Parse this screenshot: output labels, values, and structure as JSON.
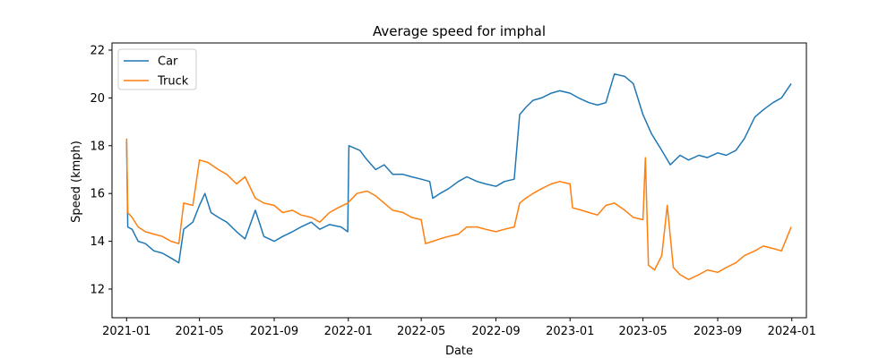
{
  "chart_data": {
    "type": "line",
    "title": "Average speed for imphal",
    "xlabel": "Date",
    "ylabel": "Speed (kmph)",
    "xlim": [
      "2020-12-08",
      "2024-01-25"
    ],
    "ylim": [
      10.8,
      22.3
    ],
    "xticks": [
      "2021-01",
      "2021-05",
      "2021-09",
      "2022-01",
      "2022-05",
      "2022-09",
      "2023-01",
      "2023-05",
      "2023-09",
      "2024-01"
    ],
    "yticks": [
      12,
      14,
      16,
      18,
      20,
      22
    ],
    "grid": false,
    "legend_position": "top-left",
    "series": [
      {
        "name": "Car",
        "color": "#1f77b4",
        "points": [
          [
            "2021-01-01",
            18.2
          ],
          [
            "2021-01-03",
            14.6
          ],
          [
            "2021-01-10",
            14.5
          ],
          [
            "2021-01-20",
            14.0
          ],
          [
            "2021-02-01",
            13.9
          ],
          [
            "2021-02-15",
            13.6
          ],
          [
            "2021-03-01",
            13.5
          ],
          [
            "2021-03-15",
            13.3
          ],
          [
            "2021-03-28",
            13.1
          ],
          [
            "2021-04-05",
            14.5
          ],
          [
            "2021-04-20",
            14.8
          ],
          [
            "2021-05-01",
            15.5
          ],
          [
            "2021-05-10",
            16.0
          ],
          [
            "2021-05-20",
            15.2
          ],
          [
            "2021-06-01",
            15.0
          ],
          [
            "2021-06-15",
            14.8
          ],
          [
            "2021-07-01",
            14.4
          ],
          [
            "2021-07-15",
            14.1
          ],
          [
            "2021-08-01",
            15.3
          ],
          [
            "2021-08-15",
            14.2
          ],
          [
            "2021-09-01",
            14.0
          ],
          [
            "2021-09-15",
            14.2
          ],
          [
            "2021-10-01",
            14.4
          ],
          [
            "2021-10-15",
            14.6
          ],
          [
            "2021-11-01",
            14.8
          ],
          [
            "2021-11-15",
            14.5
          ],
          [
            "2021-12-01",
            14.7
          ],
          [
            "2021-12-20",
            14.6
          ],
          [
            "2021-12-31",
            14.4
          ],
          [
            "2022-01-02",
            18.0
          ],
          [
            "2022-01-20",
            17.8
          ],
          [
            "2022-02-01",
            17.4
          ],
          [
            "2022-02-15",
            17.0
          ],
          [
            "2022-03-01",
            17.2
          ],
          [
            "2022-03-15",
            16.8
          ],
          [
            "2022-04-01",
            16.8
          ],
          [
            "2022-04-15",
            16.7
          ],
          [
            "2022-05-01",
            16.6
          ],
          [
            "2022-05-15",
            16.5
          ],
          [
            "2022-05-20",
            15.8
          ],
          [
            "2022-06-01",
            16.0
          ],
          [
            "2022-06-15",
            16.2
          ],
          [
            "2022-07-01",
            16.5
          ],
          [
            "2022-07-15",
            16.7
          ],
          [
            "2022-08-01",
            16.5
          ],
          [
            "2022-08-15",
            16.4
          ],
          [
            "2022-09-01",
            16.3
          ],
          [
            "2022-09-15",
            16.5
          ],
          [
            "2022-10-01",
            16.6
          ],
          [
            "2022-10-10",
            19.3
          ],
          [
            "2022-10-20",
            19.6
          ],
          [
            "2022-11-01",
            19.9
          ],
          [
            "2022-11-15",
            20.0
          ],
          [
            "2022-12-01",
            20.2
          ],
          [
            "2022-12-15",
            20.3
          ],
          [
            "2023-01-01",
            20.2
          ],
          [
            "2023-01-15",
            20.0
          ],
          [
            "2023-02-01",
            19.8
          ],
          [
            "2023-02-15",
            19.7
          ],
          [
            "2023-03-01",
            19.8
          ],
          [
            "2023-03-15",
            21.0
          ],
          [
            "2023-04-01",
            20.9
          ],
          [
            "2023-04-15",
            20.6
          ],
          [
            "2023-05-01",
            19.3
          ],
          [
            "2023-05-15",
            18.5
          ],
          [
            "2023-06-01",
            17.8
          ],
          [
            "2023-06-15",
            17.2
          ],
          [
            "2023-07-01",
            17.6
          ],
          [
            "2023-07-15",
            17.4
          ],
          [
            "2023-08-01",
            17.6
          ],
          [
            "2023-08-15",
            17.5
          ],
          [
            "2023-09-01",
            17.7
          ],
          [
            "2023-09-15",
            17.6
          ],
          [
            "2023-10-01",
            17.8
          ],
          [
            "2023-10-15",
            18.3
          ],
          [
            "2023-11-01",
            19.2
          ],
          [
            "2023-11-15",
            19.5
          ],
          [
            "2023-12-01",
            19.8
          ],
          [
            "2023-12-15",
            20.0
          ],
          [
            "2023-12-31",
            20.6
          ]
        ]
      },
      {
        "name": "Truck",
        "color": "#ff7f0e",
        "points": [
          [
            "2021-01-01",
            18.3
          ],
          [
            "2021-01-03",
            15.2
          ],
          [
            "2021-01-10",
            15.0
          ],
          [
            "2021-01-20",
            14.6
          ],
          [
            "2021-02-01",
            14.4
          ],
          [
            "2021-02-15",
            14.3
          ],
          [
            "2021-03-01",
            14.2
          ],
          [
            "2021-03-15",
            14.0
          ],
          [
            "2021-03-28",
            13.9
          ],
          [
            "2021-04-05",
            15.6
          ],
          [
            "2021-04-20",
            15.5
          ],
          [
            "2021-05-01",
            17.4
          ],
          [
            "2021-05-15",
            17.3
          ],
          [
            "2021-06-01",
            17.0
          ],
          [
            "2021-06-15",
            16.8
          ],
          [
            "2021-07-01",
            16.4
          ],
          [
            "2021-07-15",
            16.7
          ],
          [
            "2021-08-01",
            15.8
          ],
          [
            "2021-08-15",
            15.6
          ],
          [
            "2021-09-01",
            15.5
          ],
          [
            "2021-09-15",
            15.2
          ],
          [
            "2021-10-01",
            15.3
          ],
          [
            "2021-10-15",
            15.1
          ],
          [
            "2021-11-01",
            15.0
          ],
          [
            "2021-11-15",
            14.8
          ],
          [
            "2021-12-01",
            15.2
          ],
          [
            "2021-12-15",
            15.4
          ],
          [
            "2021-12-31",
            15.6
          ],
          [
            "2022-01-15",
            16.0
          ],
          [
            "2022-02-01",
            16.1
          ],
          [
            "2022-02-15",
            15.9
          ],
          [
            "2022-03-01",
            15.6
          ],
          [
            "2022-03-15",
            15.3
          ],
          [
            "2022-04-01",
            15.2
          ],
          [
            "2022-04-15",
            15.0
          ],
          [
            "2022-05-01",
            14.9
          ],
          [
            "2022-05-08",
            13.9
          ],
          [
            "2022-05-20",
            14.0
          ],
          [
            "2022-06-01",
            14.1
          ],
          [
            "2022-06-15",
            14.2
          ],
          [
            "2022-07-01",
            14.3
          ],
          [
            "2022-07-15",
            14.6
          ],
          [
            "2022-08-01",
            14.6
          ],
          [
            "2022-08-15",
            14.5
          ],
          [
            "2022-09-01",
            14.4
          ],
          [
            "2022-09-15",
            14.5
          ],
          [
            "2022-10-01",
            14.6
          ],
          [
            "2022-10-10",
            15.6
          ],
          [
            "2022-10-20",
            15.8
          ],
          [
            "2022-11-01",
            16.0
          ],
          [
            "2022-11-15",
            16.2
          ],
          [
            "2022-12-01",
            16.4
          ],
          [
            "2022-12-15",
            16.5
          ],
          [
            "2023-01-01",
            16.4
          ],
          [
            "2023-01-05",
            15.4
          ],
          [
            "2023-01-20",
            15.3
          ],
          [
            "2023-02-01",
            15.2
          ],
          [
            "2023-02-15",
            15.1
          ],
          [
            "2023-03-01",
            15.5
          ],
          [
            "2023-03-15",
            15.6
          ],
          [
            "2023-04-01",
            15.3
          ],
          [
            "2023-04-15",
            15.0
          ],
          [
            "2023-05-01",
            14.9
          ],
          [
            "2023-05-05",
            17.5
          ],
          [
            "2023-05-10",
            13.0
          ],
          [
            "2023-05-20",
            12.8
          ],
          [
            "2023-06-01",
            13.4
          ],
          [
            "2023-06-10",
            15.5
          ],
          [
            "2023-06-20",
            12.9
          ],
          [
            "2023-07-01",
            12.6
          ],
          [
            "2023-07-15",
            12.4
          ],
          [
            "2023-08-01",
            12.6
          ],
          [
            "2023-08-15",
            12.8
          ],
          [
            "2023-09-01",
            12.7
          ],
          [
            "2023-09-15",
            12.9
          ],
          [
            "2023-10-01",
            13.1
          ],
          [
            "2023-10-15",
            13.4
          ],
          [
            "2023-11-01",
            13.6
          ],
          [
            "2023-11-15",
            13.8
          ],
          [
            "2023-12-01",
            13.7
          ],
          [
            "2023-12-15",
            13.6
          ],
          [
            "2023-12-31",
            14.6
          ]
        ]
      }
    ]
  }
}
